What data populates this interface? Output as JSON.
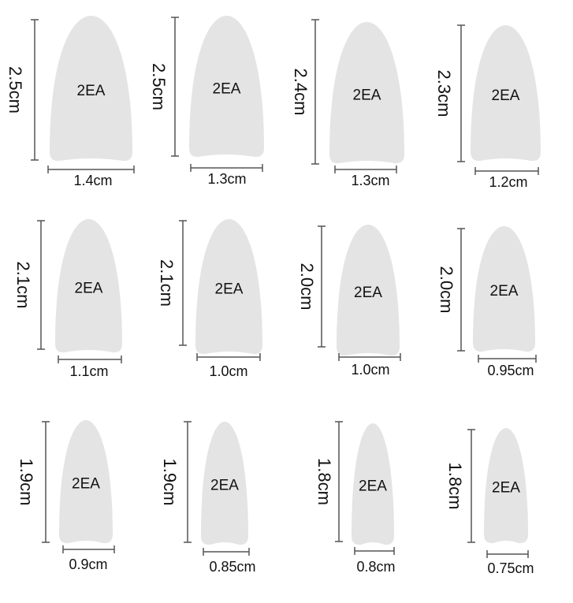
{
  "nails": [
    {
      "height": "2.5cm",
      "width": "1.4cm",
      "count": "2EA"
    },
    {
      "height": "2.5cm",
      "width": "1.3cm",
      "count": "2EA"
    },
    {
      "height": "2.4cm",
      "width": "1.3cm",
      "count": "2EA"
    },
    {
      "height": "2.3cm",
      "width": "1.2cm",
      "count": "2EA"
    },
    {
      "height": "2.1cm",
      "width": "1.1cm",
      "count": "2EA"
    },
    {
      "height": "2.1cm",
      "width": "1.0cm",
      "count": "2EA"
    },
    {
      "height": "2.0cm",
      "width": "1.0cm",
      "count": "2EA"
    },
    {
      "height": "2.0cm",
      "width": "0.95cm",
      "count": "2EA"
    },
    {
      "height": "1.9cm",
      "width": "0.9cm",
      "count": "2EA"
    },
    {
      "height": "1.9cm",
      "width": "0.85cm",
      "count": "2EA"
    },
    {
      "height": "1.8cm",
      "width": "0.8cm",
      "count": "2EA"
    },
    {
      "height": "1.8cm",
      "width": "0.75cm",
      "count": "2EA"
    }
  ]
}
